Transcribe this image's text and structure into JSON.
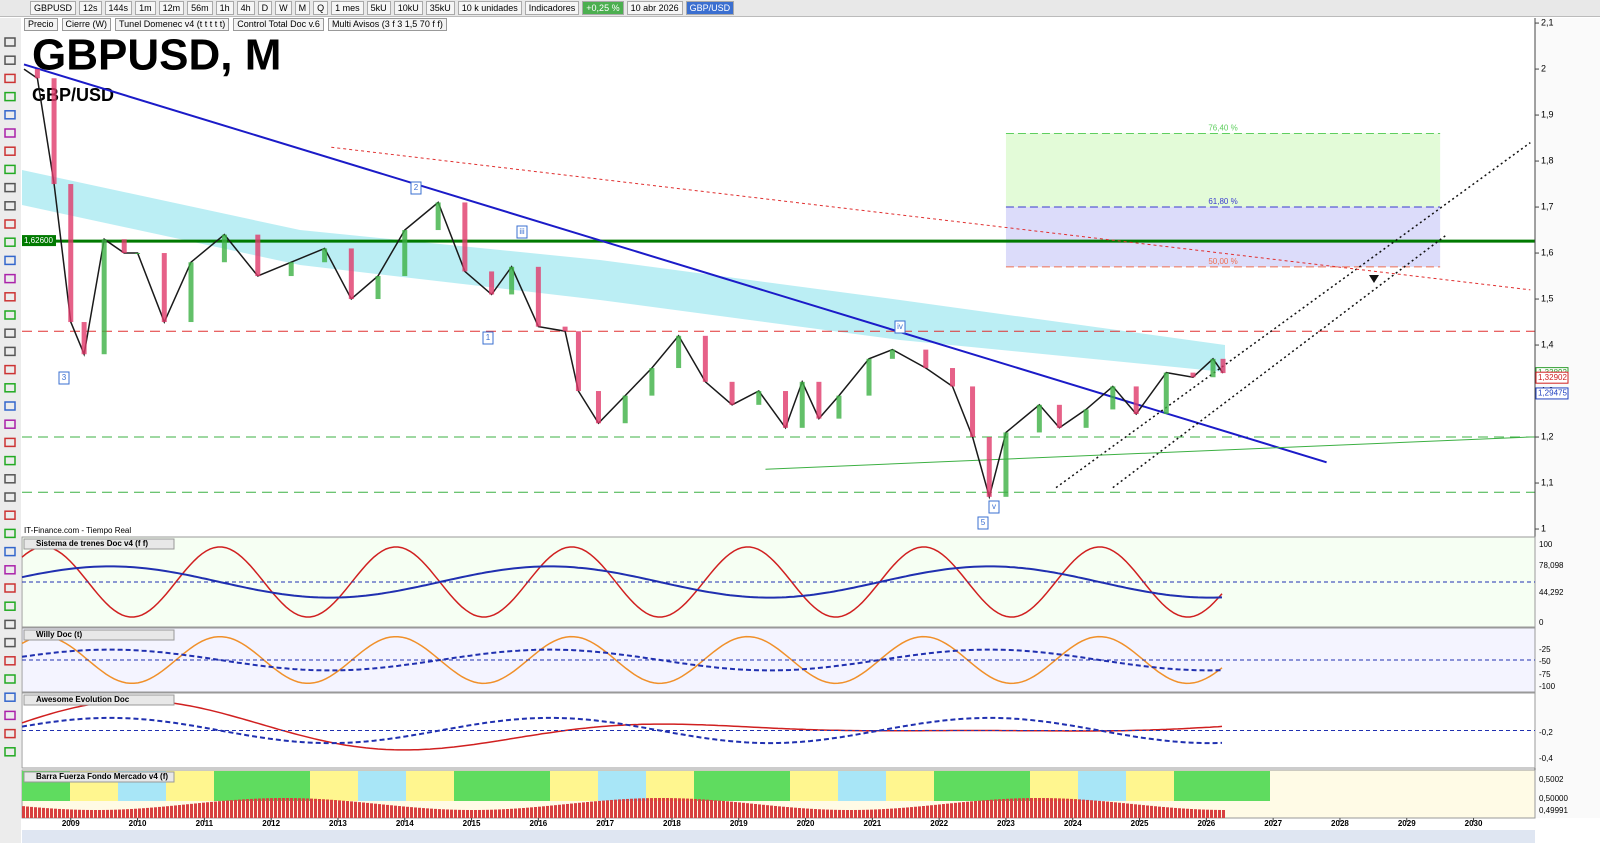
{
  "toolbar": {
    "symbol": "GBPUSD",
    "buttons": [
      "12s",
      "144s",
      "1m",
      "12m",
      "56m",
      "1h",
      "4h",
      "D",
      "W",
      "M",
      "Q"
    ],
    "period": "1 mes",
    "units": [
      "5kU",
      "10kU",
      "35kU"
    ],
    "size": "10 k unidades",
    "indicators": "Indicadores",
    "change": "+0,25 %",
    "date": "10 abr 2026",
    "pair": "GBP/USD"
  },
  "legend_row": [
    "Precio",
    "Cierre (W)",
    "Tunel Domenec v4 (t t t t t)",
    "Control Total Doc v.6",
    "Multi Avisos (3 f 3 1,5 70 f f)"
  ],
  "source": "IT-Finance.com - Tiempo Real",
  "chart_data": {
    "type": "line",
    "title": "GBPUSD, M",
    "subtitle": "GBP/USD",
    "xlim": [
      2008.27,
      2030.92
    ],
    "ylim": [
      0.987,
      2.111
    ],
    "xticks": [
      2009,
      2010,
      2011,
      2012,
      2013,
      2014,
      2015,
      2016,
      2017,
      2018,
      2019,
      2020,
      2021,
      2022,
      2023,
      2024,
      2025,
      2026,
      2027,
      2028,
      2029,
      2030
    ],
    "yticks": [
      {
        "value": 2.1,
        "label": "2,1"
      },
      2,
      {
        "value": 1.9,
        "label": "1,9"
      },
      {
        "value": 1.8,
        "label": "1,8"
      },
      {
        "value": 1.7,
        "label": "1,7"
      },
      {
        "value": 1.6,
        "label": "1,6"
      },
      {
        "value": 1.5,
        "label": "1,5"
      },
      {
        "value": 1.4,
        "label": "1,4"
      },
      {
        "value": 1.3,
        "label": "1,3"
      },
      {
        "value": 1.2,
        "label": "1,2"
      },
      {
        "value": 1.1,
        "label": "1,1"
      },
      1
    ],
    "series": [
      {
        "name": "Precio",
        "color": "#1a1a1a",
        "x": [
          2008.3,
          2008.5,
          2008.75,
          2009.0,
          2009.2,
          2009.5,
          2009.8,
          2010.0,
          2010.4,
          2010.8,
          2011.3,
          2011.8,
          2012.3,
          2012.8,
          2013.2,
          2013.6,
          2014.0,
          2014.5,
          2014.9,
          2015.3,
          2015.6,
          2016.0,
          2016.4,
          2016.6,
          2016.9,
          2017.3,
          2017.7,
          2018.1,
          2018.5,
          2018.9,
          2019.3,
          2019.7,
          2019.95,
          2020.2,
          2020.5,
          2020.95,
          2021.3,
          2021.8,
          2022.2,
          2022.5,
          2022.75,
          2023.0,
          2023.5,
          2023.8,
          2024.2,
          2024.6,
          2024.95,
          2025.4,
          2025.8,
          2026.1,
          2026.25
        ],
        "values": [
          2.0,
          1.98,
          1.75,
          1.45,
          1.38,
          1.63,
          1.6,
          1.6,
          1.45,
          1.58,
          1.64,
          1.55,
          1.58,
          1.61,
          1.5,
          1.55,
          1.65,
          1.71,
          1.56,
          1.51,
          1.57,
          1.44,
          1.43,
          1.3,
          1.23,
          1.29,
          1.35,
          1.42,
          1.32,
          1.27,
          1.3,
          1.22,
          1.32,
          1.24,
          1.29,
          1.37,
          1.39,
          1.35,
          1.31,
          1.2,
          1.07,
          1.21,
          1.27,
          1.22,
          1.26,
          1.31,
          1.25,
          1.34,
          1.33,
          1.37,
          1.339
        ]
      }
    ],
    "levels": [
      {
        "value": 1.626,
        "label": "1,62600",
        "color": "#007a00",
        "width": 3,
        "dash": ""
      },
      {
        "value": 1.43,
        "color": "#e03030",
        "width": 1,
        "dash": "10 6"
      },
      {
        "value": 1.2,
        "color": "#3cb043",
        "width": 1,
        "dash": "10 6"
      },
      {
        "value": 1.08,
        "color": "#3cb043",
        "width": 1,
        "dash": "10 6"
      }
    ],
    "trendlines": [
      {
        "x": [
          2008.3,
          2027.8
        ],
        "values": [
          2.01,
          1.145
        ],
        "color": "#1b1bc8",
        "width": 2,
        "dash": ""
      },
      {
        "x": [
          2023.75,
          2030.85
        ],
        "values": [
          1.09,
          1.84
        ],
        "color": "#111111",
        "width": 1.5,
        "dash": "2 3"
      },
      {
        "x": [
          2024.6,
          2029.6
        ],
        "values": [
          1.09,
          1.64
        ],
        "color": "#111111",
        "width": 1.5,
        "dash": "2 3"
      },
      {
        "x": [
          2019.4,
          2030.85
        ],
        "values": [
          1.13,
          1.2
        ],
        "color": "#3cb043",
        "width": 1,
        "dash": ""
      },
      {
        "x": [
          2012.9,
          2030.85
        ],
        "values": [
          1.83,
          1.52
        ],
        "color": "#e03030",
        "width": 1,
        "dash": "3 3"
      }
    ],
    "fib": {
      "x": [
        2023,
        2029.5
      ],
      "levels": [
        {
          "price": 1.86,
          "label": "76,40 %",
          "color": "#5fcf5f"
        },
        {
          "price": 1.7,
          "label": "61,80 %",
          "color": "#3a3ad0"
        },
        {
          "price": 1.57,
          "label": "50,00 %",
          "color": "#f07050"
        }
      ]
    },
    "price_tags": [
      {
        "value": 1.33892,
        "label": "1,33892",
        "color": "#2e9e2e"
      },
      {
        "value": 1.32902,
        "label": "1,32902",
        "color": "#d02020"
      },
      {
        "value": 1.29475,
        "label": "1,29475",
        "color": "#2040c0"
      }
    ],
    "annotations": [
      "3",
      "2",
      "1",
      "iii",
      "iv",
      "v",
      "5"
    ]
  },
  "panels": [
    {
      "title": "Sistema de trenes Doc v4 (f f)",
      "labels": [
        "100",
        "78,098",
        "44,292",
        "0"
      ]
    },
    {
      "title": "Willy Doc (t)",
      "labels": [
        "-25",
        "-50",
        "-75",
        "-100"
      ]
    },
    {
      "title": "Awesome Evolution Doc",
      "labels": [
        "-0,2",
        "-0,4"
      ]
    },
    {
      "title": "Barra Fuerza Fondo Mercado v4 (f)",
      "labels": [
        "0,5002",
        "0,50000",
        "0,49991"
      ]
    }
  ]
}
